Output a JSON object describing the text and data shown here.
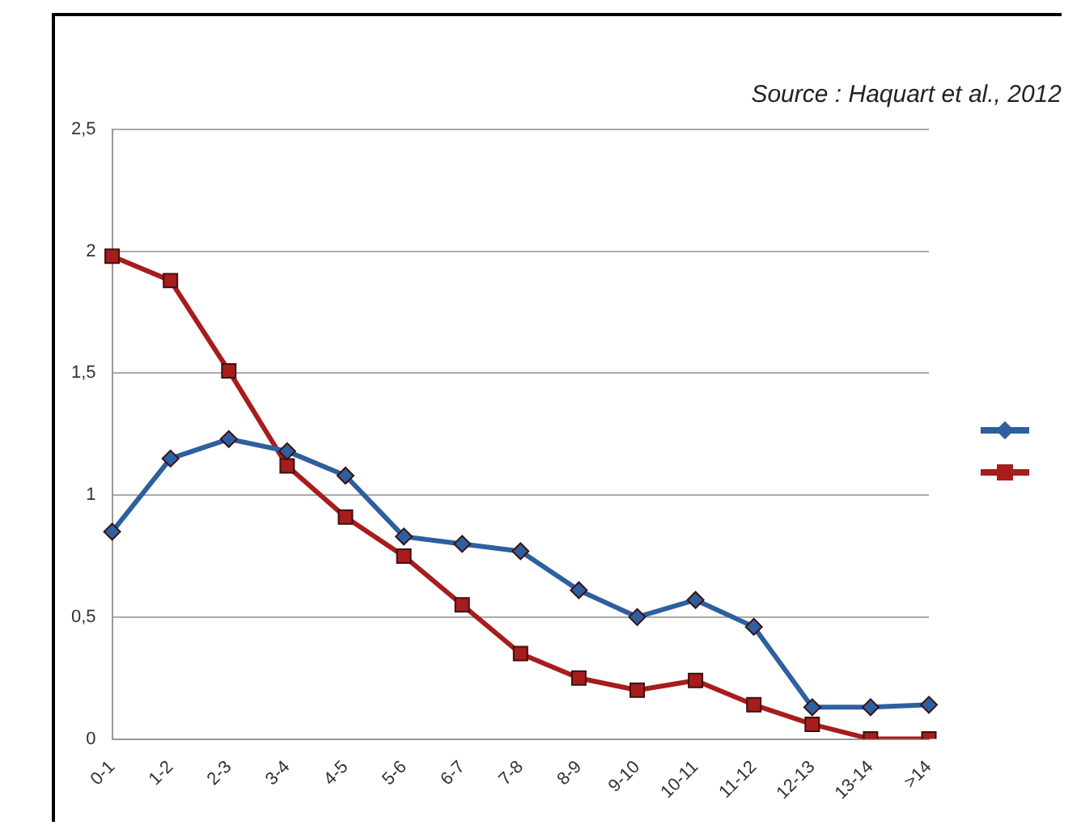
{
  "chart_data": {
    "type": "line",
    "annotations": [
      "Source : Haquart et al., 2012"
    ],
    "categories": [
      "0-1",
      "1-2",
      "2-3",
      "3-4",
      "4-5",
      "5-6",
      "6-7",
      "7-8",
      "8-9",
      "9-10",
      "10-11",
      "11-12",
      "12-13",
      "13-14",
      ">14"
    ],
    "series": [
      {
        "color": "#2e5f9e",
        "marker": "diamond",
        "values": [
          0.85,
          1.15,
          1.23,
          1.18,
          1.08,
          0.83,
          0.8,
          0.77,
          0.61,
          0.5,
          0.57,
          0.46,
          0.13,
          0.13,
          0.14
        ]
      },
      {
        "color": "#a81c1c",
        "marker": "square",
        "values": [
          1.98,
          1.88,
          1.51,
          1.12,
          0.91,
          0.75,
          0.55,
          0.35,
          0.25,
          0.2,
          0.24,
          0.14,
          0.06,
          0,
          0
        ]
      }
    ],
    "ylim": [
      0,
      2.5
    ],
    "yticks": [
      0,
      {
        "value": 0.5,
        "label": "0,5"
      },
      1,
      {
        "value": 1.5,
        "label": "1,5"
      },
      2,
      {
        "value": 2.5,
        "label": "2,5"
      }
    ],
    "grid": "y"
  }
}
